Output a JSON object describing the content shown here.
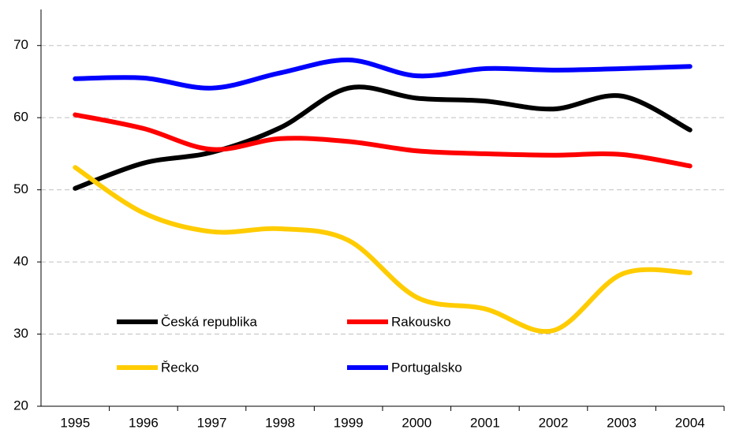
{
  "chart_data": {
    "type": "line",
    "categories": [
      "1995",
      "1996",
      "1997",
      "1998",
      "1999",
      "2000",
      "2001",
      "2002",
      "2003",
      "2004"
    ],
    "series": [
      {
        "name": "Česká republika",
        "color": "#000000",
        "values": [
          50.2,
          53.7,
          55.2,
          58.6,
          64.1,
          62.7,
          62.3,
          61.2,
          63.0,
          58.3
        ]
      },
      {
        "name": "Rakousko",
        "color": "#ff0000",
        "values": [
          60.4,
          58.5,
          55.6,
          57.1,
          56.7,
          55.4,
          55.0,
          54.8,
          54.9,
          53.3
        ]
      },
      {
        "name": "Řecko",
        "color": "#ffcc00",
        "values": [
          53.1,
          46.8,
          44.2,
          44.6,
          43.0,
          35.1,
          33.5,
          30.5,
          38.3,
          38.5
        ]
      },
      {
        "name": "Portugalsko",
        "color": "#0000ff",
        "values": [
          65.4,
          65.5,
          64.1,
          66.2,
          68.0,
          65.8,
          66.8,
          66.6,
          66.8,
          67.1
        ]
      }
    ],
    "ylim": [
      20,
      75
    ],
    "yticks": [
      20,
      30,
      40,
      50,
      60,
      70
    ],
    "grid": true,
    "legend": "lower-left"
  }
}
